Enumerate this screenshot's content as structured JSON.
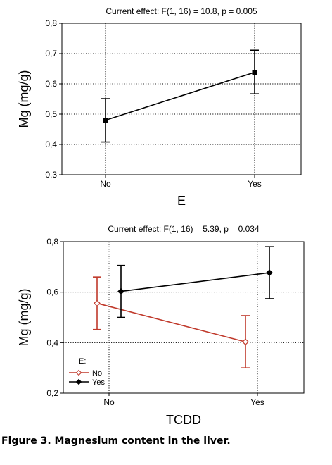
{
  "caption": "Figure 3. Magnesium content in the liver.",
  "chart_data": [
    {
      "type": "line",
      "title": "Current effect: F(1, 16) = 10.8, p = 0.005",
      "xlabel": "E",
      "ylabel": "Mg (mg/g)",
      "categories": [
        "No",
        "Yes"
      ],
      "ylim": [
        0.3,
        0.8
      ],
      "yticks": [
        "0,3",
        "0,4",
        "0,5",
        "0,6",
        "0,7",
        "0,8"
      ],
      "grid": true,
      "series": [
        {
          "color": "#000000",
          "marker": "square",
          "values": [
            0.48,
            0.638
          ],
          "err_low": [
            0.408,
            0.567
          ],
          "err_high": [
            0.551,
            0.711
          ]
        }
      ]
    },
    {
      "type": "line",
      "title": "Current effect: F(1, 16) = 5.39, p = 0.034",
      "xlabel": "TCDD",
      "ylabel": "Mg (mg/g)",
      "categories": [
        "No",
        "Yes"
      ],
      "ylim": [
        0.2,
        0.8
      ],
      "yticks": [
        "0,2",
        "0,4",
        "0,6",
        "0,8"
      ],
      "grid": true,
      "legend": {
        "title": "E:",
        "position": "bottom-left"
      },
      "series": [
        {
          "name": "No",
          "color": "#c0392b",
          "marker": "open-diamond",
          "values": [
            0.556,
            0.403
          ],
          "err_low": [
            0.452,
            0.3
          ],
          "err_high": [
            0.66,
            0.507
          ]
        },
        {
          "name": "Yes",
          "color": "#000000",
          "marker": "filled-diamond",
          "values": [
            0.603,
            0.677
          ],
          "err_low": [
            0.5,
            0.574
          ],
          "err_high": [
            0.706,
            0.78
          ]
        }
      ]
    }
  ]
}
